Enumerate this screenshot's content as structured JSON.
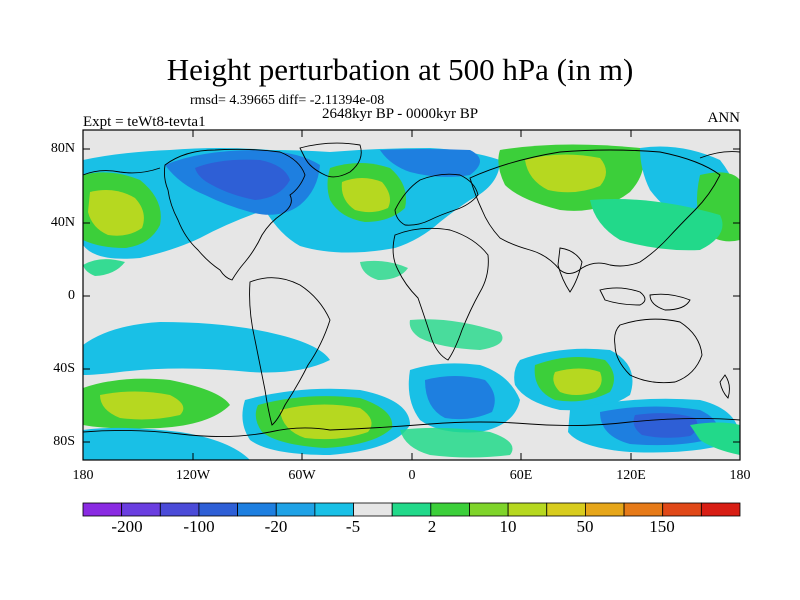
{
  "header": {
    "title": "Height perturbation at 500 hPa (in m)",
    "stats": "rmsd= 4.39665 diff= -2.11394e-08",
    "period": "2648kyr BP - 0000kyr BP",
    "experiment": "Expt = teWt8-tevta1",
    "season": "ANN"
  },
  "map": {
    "projection": "cylindrical-equidistant",
    "lat_ticks": [
      "80N",
      "40N",
      "0",
      "40S",
      "80S"
    ],
    "lon_ticks": [
      "180",
      "120W",
      "60W",
      "0",
      "60E",
      "120E",
      "180"
    ],
    "background_color": "#e6e6e6",
    "coastline_color": "#000000"
  },
  "colorbar": {
    "label_values": [
      "-200",
      "-100",
      "-20",
      "-5",
      "2",
      "10",
      "50",
      "150"
    ],
    "colors": [
      "#8a2be2",
      "#6a3ee0",
      "#4b4bd8",
      "#2e5fd6",
      "#1e7fe0",
      "#1fa2e6",
      "#19c0e6",
      "#e6e6e6",
      "#22d98a",
      "#3ccf3a",
      "#7fd42a",
      "#b6d820",
      "#d8cc1e",
      "#e6a61a",
      "#e67a18",
      "#e04818",
      "#d81e14"
    ]
  }
}
